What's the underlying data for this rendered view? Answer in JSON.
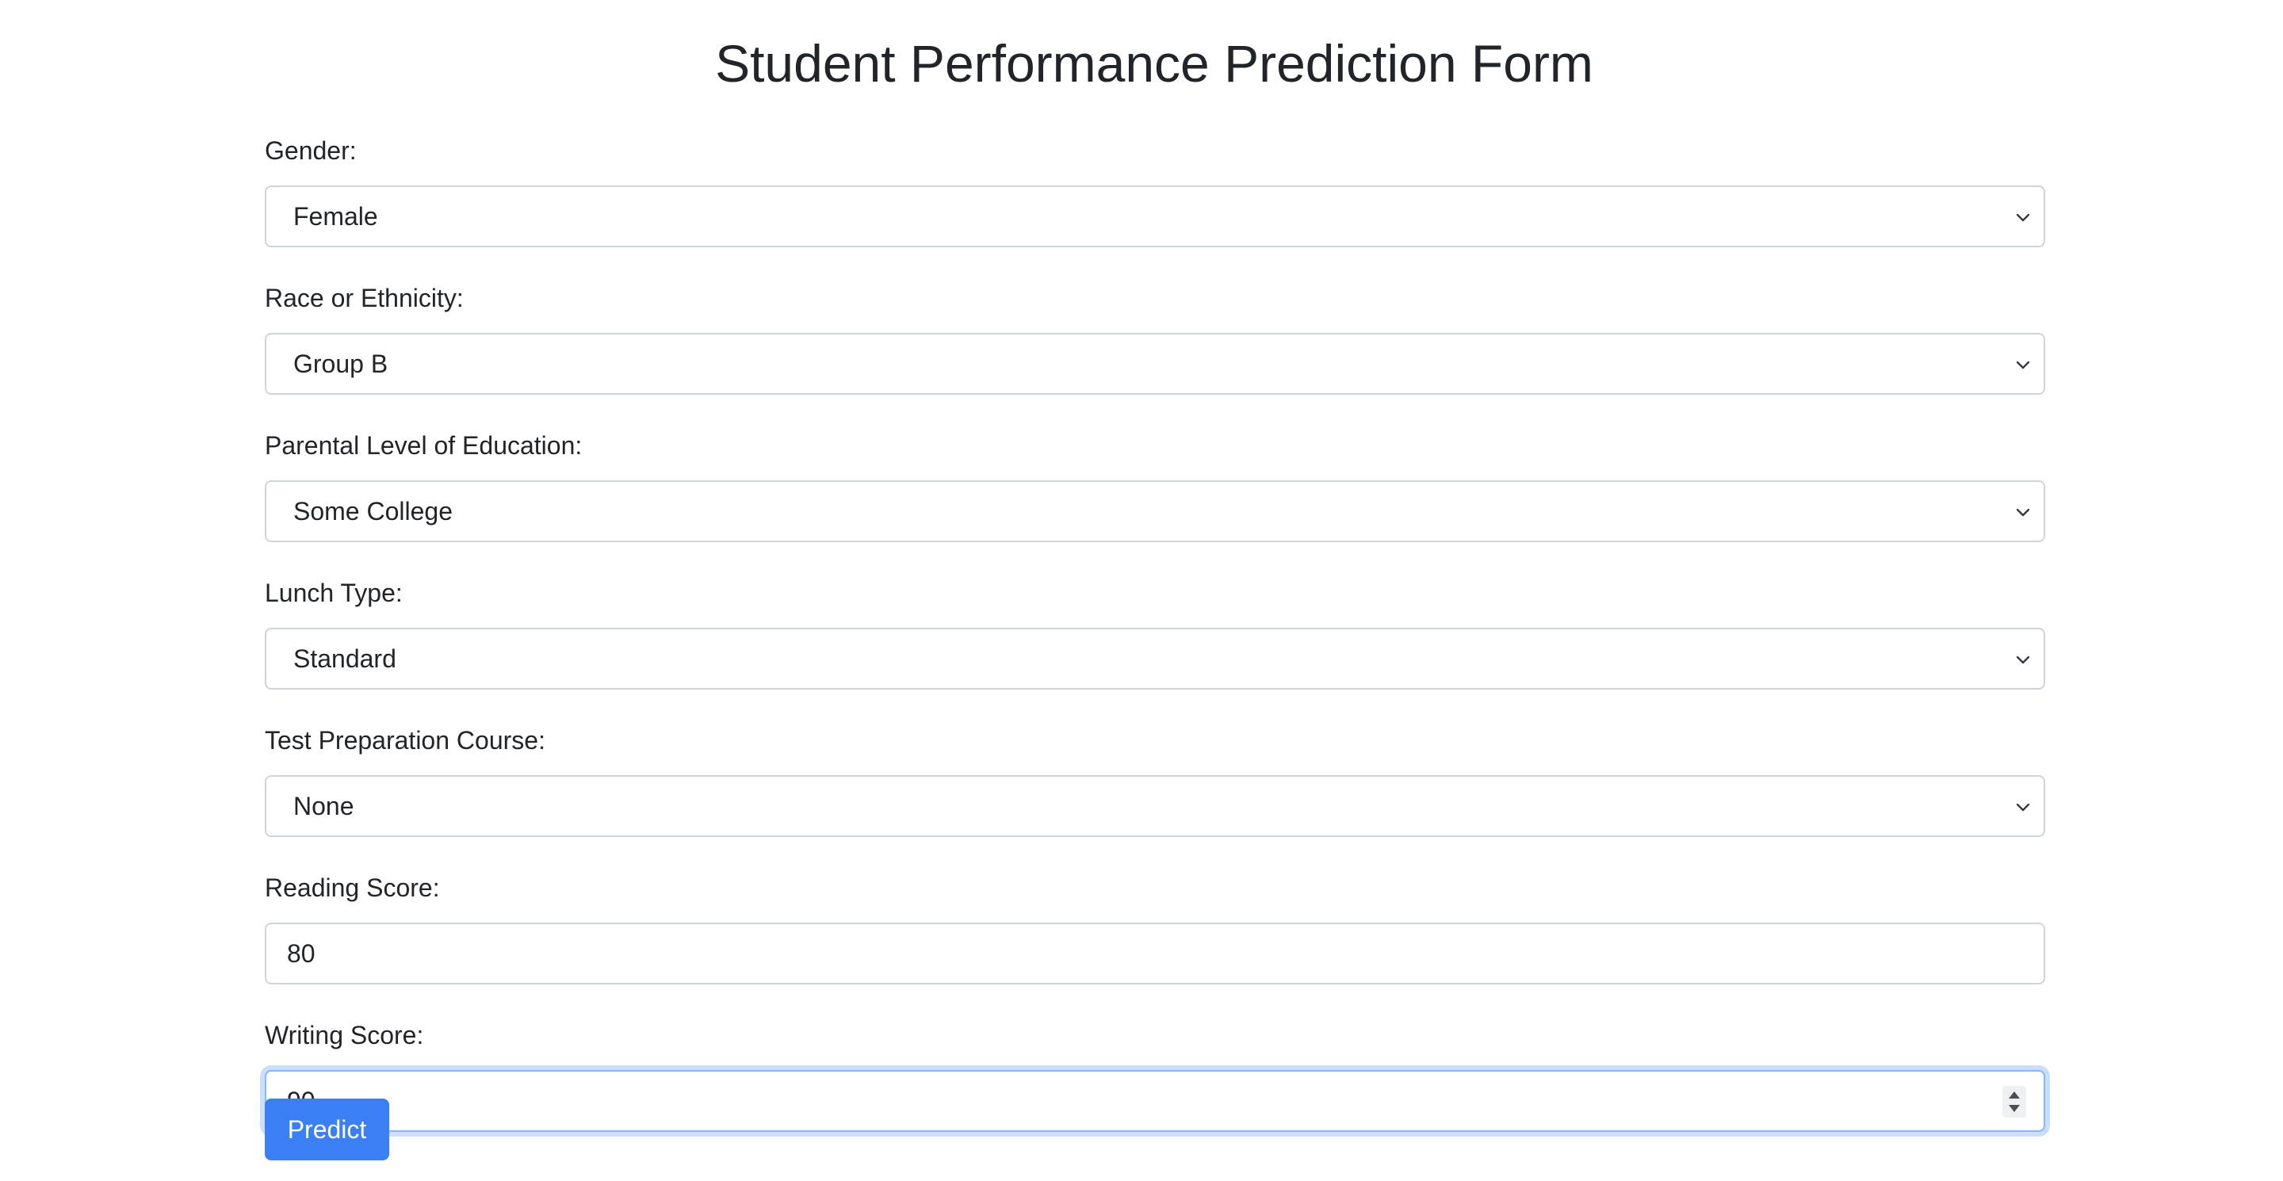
{
  "form": {
    "title": "Student Performance Prediction Form",
    "fields": [
      {
        "label": "Gender:",
        "value": "Female"
      },
      {
        "label": "Race or Ethnicity:",
        "value": "Group B"
      },
      {
        "label": "Parental Level of Education:",
        "value": "Some College"
      },
      {
        "label": "Lunch Type:",
        "value": "Standard"
      },
      {
        "label": "Test Preparation Course:",
        "value": "None"
      },
      {
        "label": "Reading Score:",
        "value": "80"
      },
      {
        "label": "Writing Score:",
        "value": "90"
      }
    ],
    "submit_label": "Predict"
  },
  "colors": {
    "primary": "#3b7ff5",
    "border": "#ced4da",
    "focus_border": "#86b7fe",
    "text": "#212529"
  }
}
